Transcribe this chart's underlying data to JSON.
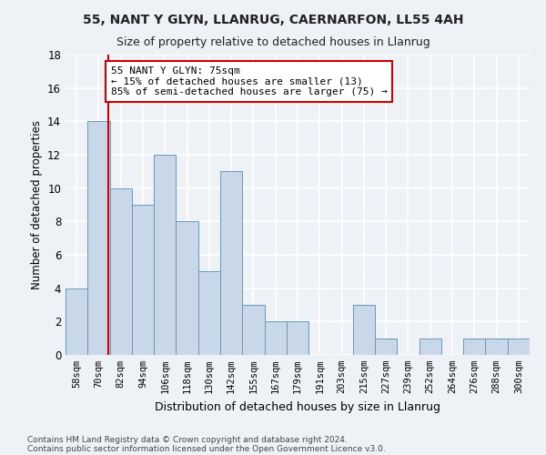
{
  "title1": "55, NANT Y GLYN, LLANRUG, CAERNARFON, LL55 4AH",
  "title2": "Size of property relative to detached houses in Llanrug",
  "xlabel": "Distribution of detached houses by size in Llanrug",
  "ylabel": "Number of detached properties",
  "categories": [
    "58sqm",
    "70sqm",
    "82sqm",
    "94sqm",
    "106sqm",
    "118sqm",
    "130sqm",
    "142sqm",
    "155sqm",
    "167sqm",
    "179sqm",
    "191sqm",
    "203sqm",
    "215sqm",
    "227sqm",
    "239sqm",
    "252sqm",
    "264sqm",
    "276sqm",
    "288sqm",
    "300sqm"
  ],
  "values": [
    4,
    14,
    10,
    9,
    12,
    8,
    5,
    11,
    3,
    2,
    2,
    0,
    0,
    3,
    1,
    0,
    1,
    0,
    1,
    1,
    1
  ],
  "bar_color": "#c8d8e8",
  "bar_edge_color": "#6699bb",
  "annotation_line1": "55 NANT Y GLYN: 75sqm",
  "annotation_line2": "← 15% of detached houses are smaller (13)",
  "annotation_line3": "85% of semi-detached houses are larger (75) →",
  "annotation_box_color": "#ffffff",
  "annotation_box_edge_color": "#cc0000",
  "vline_color": "#cc0000",
  "background_color": "#eef2f7",
  "plot_bg_color": "#eef2f7",
  "grid_color": "#ffffff",
  "ylim": [
    0,
    18
  ],
  "yticks": [
    0,
    2,
    4,
    6,
    8,
    10,
    12,
    14,
    16,
    18
  ],
  "footer1": "Contains HM Land Registry data © Crown copyright and database right 2024.",
  "footer2": "Contains public sector information licensed under the Open Government Licence v3.0."
}
